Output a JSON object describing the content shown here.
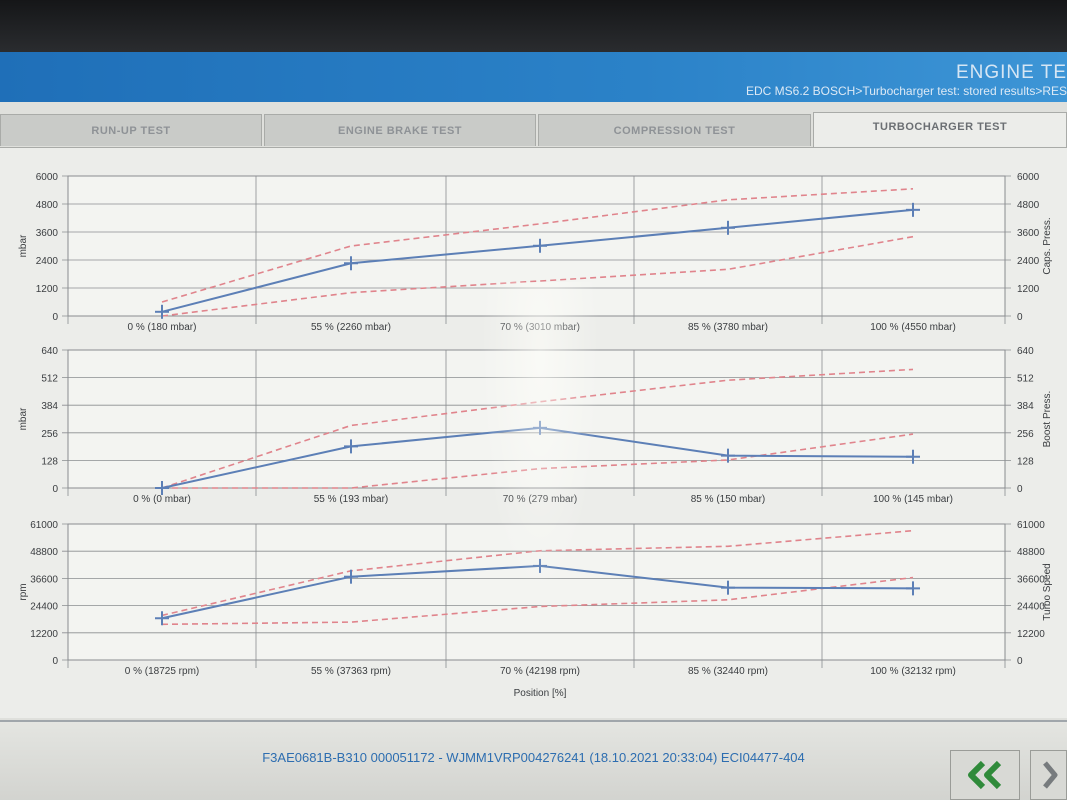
{
  "header": {
    "title": "ENGINE TE",
    "breadcrumb": "EDC MS6.2 BOSCH>Turbocharger test: stored results>RES"
  },
  "tabs": [
    {
      "label": "RUN-UP TEST",
      "active": false
    },
    {
      "label": "ENGINE BRAKE TEST",
      "active": false
    },
    {
      "label": "COMPRESSION TEST",
      "active": false
    },
    {
      "label": "TURBOCHARGER TEST",
      "active": true
    }
  ],
  "colors": {
    "series_line": "#5c7fb6",
    "limit_line": "#e0848c",
    "grid": "#8a8d90",
    "axis_text": "#3a3d40",
    "accent": "#2d6db0"
  },
  "chart_data": [
    {
      "type": "line",
      "ylabel": "mbar",
      "ylabel_right": "Caps. Press.",
      "ylim": [
        0,
        6000
      ],
      "yticks": [
        "0",
        "1200",
        "2400",
        "3600",
        "4800",
        "6000"
      ],
      "categories": [
        "0 % (180 mbar)",
        "55 % (2260 mbar)",
        "70 % (3010 mbar)",
        "85 % (3780 mbar)",
        "100 % (4550 mbar)"
      ],
      "x": [
        0,
        55,
        70,
        85,
        100
      ],
      "measured": [
        180,
        2260,
        3010,
        3780,
        4550
      ],
      "upper_limit": [
        600,
        3000,
        3950,
        4980,
        5450
      ],
      "lower_limit": [
        0,
        1000,
        1500,
        2000,
        3400
      ],
      "grid": true
    },
    {
      "type": "line",
      "ylabel": "mbar",
      "ylabel_right": "Boost Press.",
      "ylim": [
        0,
        640
      ],
      "yticks": [
        "0",
        "128",
        "256",
        "384",
        "512",
        "640"
      ],
      "categories": [
        "0 % (0 mbar)",
        "55 % (193 mbar)",
        "70 % (279 mbar)",
        "85 % (150 mbar)",
        "100 % (145 mbar)"
      ],
      "x": [
        0,
        55,
        70,
        85,
        100
      ],
      "measured": [
        0,
        193,
        279,
        150,
        145
      ],
      "upper_limit": [
        0,
        290,
        400,
        500,
        550
      ],
      "lower_limit": [
        0,
        0,
        90,
        130,
        250
      ],
      "grid": true
    },
    {
      "type": "line",
      "ylabel": "rpm",
      "ylabel_right": "Turbo Speed",
      "xlabel": "Position [%]",
      "ylim": [
        0,
        61000
      ],
      "yticks": [
        "0",
        "12200",
        "24400",
        "36600",
        "48800",
        "61000"
      ],
      "categories": [
        "0 % (18725 rpm)",
        "55 % (37363 rpm)",
        "70 % (42198 rpm)",
        "85 % (32440 rpm)",
        "100 % (32132 rpm)"
      ],
      "x": [
        0,
        55,
        70,
        85,
        100
      ],
      "measured": [
        18725,
        37363,
        42198,
        32440,
        32132
      ],
      "upper_limit": [
        20000,
        40000,
        49000,
        51000,
        58000
      ],
      "lower_limit": [
        16000,
        17000,
        24000,
        27000,
        37000
      ],
      "grid": true
    }
  ],
  "footer": {
    "ecu_info": "F3AE0681B-B310 000051172 - WJMM1VRP004276241 (18.10.2021 20:33:04) ECI04477-404"
  },
  "nav": {
    "back_icon": "double-chevron-left-icon",
    "next_icon": "chevron-right-icon"
  }
}
